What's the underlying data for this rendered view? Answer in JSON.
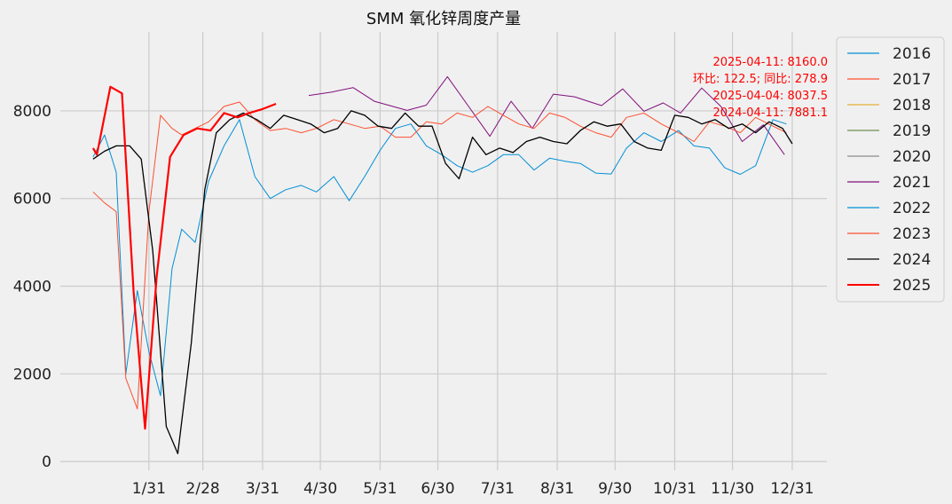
{
  "chart_data": {
    "type": "line",
    "title": "SMM 氧化锌周度产量",
    "xlabel": "",
    "ylabel": "",
    "x_tick_labels": [
      "1/31",
      "2/28",
      "3/31",
      "4/30",
      "5/31",
      "6/30",
      "7/31",
      "8/31",
      "9/30",
      "10/31",
      "11/30",
      "12/31"
    ],
    "x_tick_days": [
      31,
      59,
      90,
      120,
      151,
      181,
      212,
      243,
      273,
      304,
      334,
      365
    ],
    "xlim": [
      -15,
      383
    ],
    "y_ticks": [
      0,
      2000,
      4000,
      6000,
      8000
    ],
    "ylim": [
      -200,
      9800
    ],
    "grid": true,
    "legend_position": "right",
    "annotations": [
      "2025-04-11: 8160.0",
      "环比: 122.5; 同比: 278.9",
      "2025-04-04: 8037.5",
      "2024-04-11: 7881.1"
    ],
    "series": [
      {
        "name": "2016",
        "color": "#008fd5",
        "width": 1,
        "x": [],
        "y": []
      },
      {
        "name": "2017",
        "color": "#fc4f30",
        "width": 1,
        "x": [],
        "y": []
      },
      {
        "name": "2018",
        "color": "#e5ae38",
        "width": 1,
        "x": [],
        "y": []
      },
      {
        "name": "2019",
        "color": "#6d904f",
        "width": 1,
        "x": [],
        "y": []
      },
      {
        "name": "2020",
        "color": "#8b8b8b",
        "width": 1,
        "x": [],
        "y": []
      },
      {
        "name": "2021",
        "color": "#810f7c",
        "width": 1,
        "x": [
          114,
          126,
          137,
          148,
          165,
          175,
          186,
          197,
          208,
          219,
          230,
          241,
          252,
          266,
          277,
          288,
          298,
          307,
          318,
          328,
          339,
          350,
          361
        ],
        "y": [
          8350,
          8430,
          8530,
          8220,
          8010,
          8130,
          8780,
          8100,
          7420,
          8220,
          7600,
          8380,
          8320,
          8120,
          8500,
          7990,
          8180,
          7950,
          8520,
          8100,
          7300,
          7680,
          7000
        ]
      },
      {
        "name": "2022",
        "color": "#008fd5",
        "width": 1,
        "x": [
          2,
          8,
          14,
          19,
          25,
          31,
          37,
          43,
          48,
          55,
          62,
          70,
          78,
          86,
          94,
          102,
          110,
          118,
          127,
          135,
          143,
          151,
          159,
          167,
          175,
          183,
          191,
          199,
          207,
          215,
          223,
          231,
          239,
          247,
          255,
          263,
          271,
          279,
          288,
          297,
          306,
          314,
          322,
          330,
          338,
          346,
          355,
          362
        ],
        "y": [
          6950,
          7450,
          6600,
          2000,
          3900,
          2500,
          1500,
          4400,
          5300,
          5000,
          6400,
          7200,
          7800,
          6500,
          6000,
          6200,
          6300,
          6150,
          6500,
          5950,
          6500,
          7100,
          7600,
          7700,
          7200,
          7000,
          6750,
          6600,
          6750,
          7000,
          7000,
          6650,
          6920,
          6850,
          6800,
          6580,
          6560,
          7150,
          7500,
          7300,
          7550,
          7200,
          7150,
          6700,
          6550,
          6750,
          7800,
          7700
        ]
      },
      {
        "name": "2023",
        "color": "#fc4f30",
        "width": 1,
        "x": [
          2,
          8,
          14,
          19,
          25,
          31,
          37,
          43,
          48,
          55,
          62,
          70,
          78,
          86,
          94,
          102,
          110,
          118,
          127,
          135,
          143,
          151,
          159,
          167,
          175,
          183,
          191,
          199,
          207,
          215,
          223,
          231,
          239,
          247,
          255,
          263,
          271,
          279,
          288,
          297,
          306,
          314,
          322,
          330,
          338,
          346,
          355,
          362
        ],
        "y": [
          6150,
          5900,
          5700,
          1900,
          1200,
          5700,
          7900,
          7600,
          7450,
          7600,
          7750,
          8100,
          8200,
          7800,
          7550,
          7600,
          7500,
          7600,
          7800,
          7700,
          7600,
          7650,
          7400,
          7400,
          7750,
          7700,
          7950,
          7850,
          8100,
          7900,
          7700,
          7600,
          7950,
          7850,
          7650,
          7500,
          7400,
          7850,
          7950,
          7700,
          7500,
          7300,
          7750,
          7650,
          7500,
          7850,
          7650,
          7500
        ]
      },
      {
        "name": "2024",
        "color": "#000000",
        "width": 1.3,
        "x": [
          2,
          8,
          14,
          21,
          27,
          33,
          40,
          46,
          53,
          60,
          66,
          73,
          80,
          87,
          94,
          101,
          108,
          115,
          122,
          129,
          136,
          143,
          150,
          157,
          164,
          171,
          178,
          185,
          192,
          199,
          206,
          213,
          220,
          227,
          234,
          241,
          248,
          255,
          262,
          269,
          276,
          283,
          290,
          297,
          304,
          311,
          318,
          325,
          332,
          339,
          346,
          353,
          360,
          365
        ],
        "y": [
          6900,
          7080,
          7200,
          7200,
          6900,
          4800,
          800,
          180,
          2700,
          6200,
          7500,
          7800,
          7950,
          7800,
          7600,
          7900,
          7800,
          7700,
          7500,
          7600,
          8000,
          7900,
          7650,
          7600,
          7950,
          7650,
          7650,
          6800,
          6450,
          7400,
          7000,
          7150,
          7050,
          7300,
          7400,
          7300,
          7250,
          7550,
          7750,
          7650,
          7700,
          7300,
          7150,
          7100,
          7900,
          7850,
          7700,
          7800,
          7600,
          7700,
          7500,
          7750,
          7600,
          7250
        ]
      },
      {
        "name": "2025",
        "color": "#ff0000",
        "width": 2.2,
        "x": [
          2,
          4,
          11,
          17,
          23,
          29,
          35,
          42,
          49,
          56,
          63,
          70,
          77,
          83,
          90,
          97
        ],
        "y": [
          7150,
          7000,
          8550,
          8400,
          3900,
          750,
          4200,
          6950,
          7450,
          7600,
          7550,
          7950,
          7850,
          7950,
          8040,
          8160
        ]
      }
    ]
  }
}
